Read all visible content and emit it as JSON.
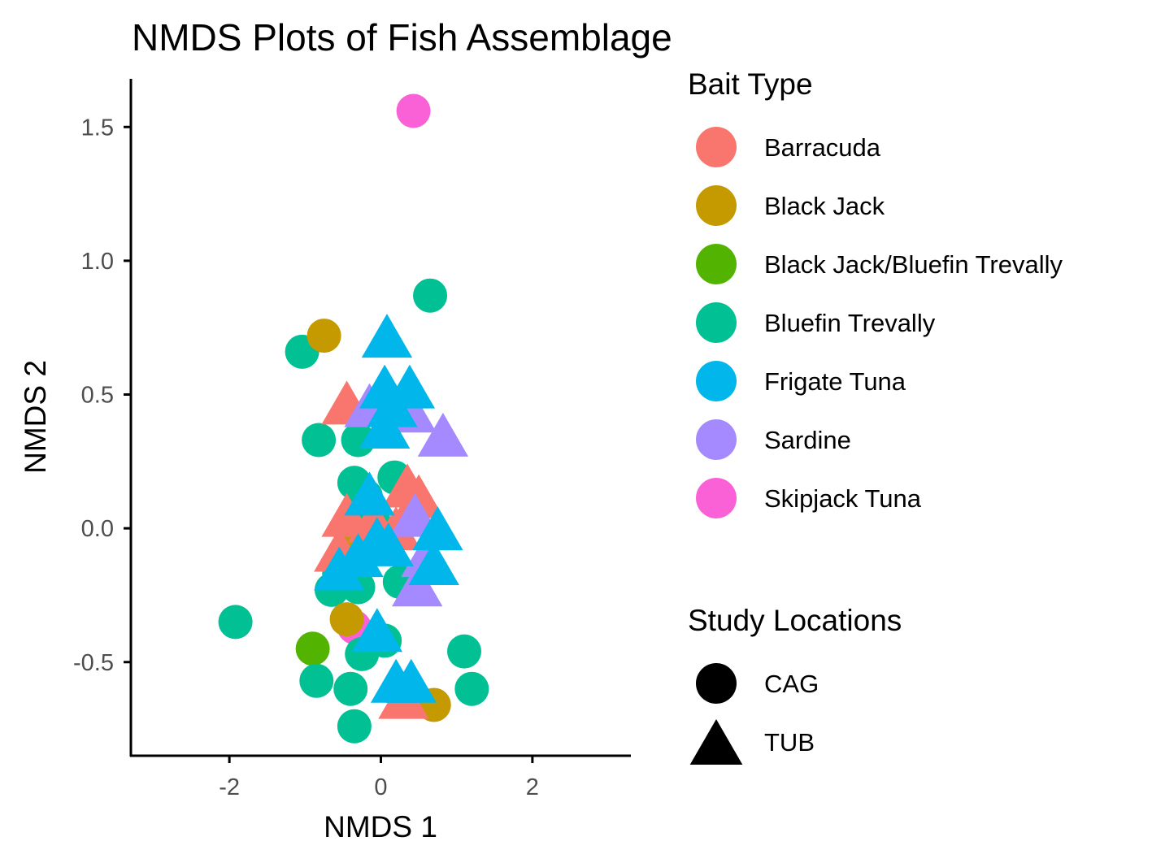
{
  "chart_data": {
    "type": "scatter",
    "title": "NMDS Plots of Fish Assemblage",
    "xlabel": "NMDS 1",
    "ylabel": "NMDS 2",
    "xlim": [
      -3.3,
      3.3
    ],
    "ylim": [
      -0.85,
      1.68
    ],
    "xticks": [
      {
        "value": -2,
        "label": "-2"
      },
      {
        "value": 0,
        "label": "0"
      },
      {
        "value": 2,
        "label": "2"
      }
    ],
    "yticks": [
      {
        "value": -0.5,
        "label": "-0.5"
      },
      {
        "value": 0.0,
        "label": "0.0"
      },
      {
        "value": 0.5,
        "label": "0.5"
      },
      {
        "value": 1.0,
        "label": "1.0"
      },
      {
        "value": 1.5,
        "label": "1.5"
      }
    ],
    "grid": false,
    "legend_placement": "right",
    "color_legend": {
      "title": "Bait Type",
      "items": [
        {
          "label": "Barracuda",
          "color": "#F8766D"
        },
        {
          "label": "Black Jack",
          "color": "#C49A00"
        },
        {
          "label": "Black Jack/Bluefin Trevally",
          "color": "#53B400"
        },
        {
          "label": "Bluefin Trevally",
          "color": "#00C094"
        },
        {
          "label": "Frigate Tuna",
          "color": "#00B6EB"
        },
        {
          "label": "Sardine",
          "color": "#A58AFF"
        },
        {
          "label": "Skipjack Tuna",
          "color": "#FB61D7"
        }
      ]
    },
    "shape_legend": {
      "title": "Study Locations",
      "items": [
        {
          "label": "CAG",
          "shape": "circle"
        },
        {
          "label": "TUB",
          "shape": "triangle"
        }
      ]
    },
    "series": [
      {
        "bait": "Bluefin Trevally",
        "location": "CAG",
        "x": -1.04,
        "y": 0.66
      },
      {
        "bait": "Black Jack",
        "location": "CAG",
        "x": -0.75,
        "y": 0.72
      },
      {
        "bait": "Bluefin Trevally",
        "location": "CAG",
        "x": 0.65,
        "y": 0.87
      },
      {
        "bait": "Skipjack Tuna",
        "location": "CAG",
        "x": 0.43,
        "y": 1.56
      },
      {
        "bait": "Bluefin Trevally",
        "location": "CAG",
        "x": -0.82,
        "y": 0.33
      },
      {
        "bait": "Bluefin Trevally",
        "location": "CAG",
        "x": -0.3,
        "y": 0.33
      },
      {
        "bait": "Bluefin Trevally",
        "location": "CAG",
        "x": -0.35,
        "y": 0.17
      },
      {
        "bait": "Bluefin Trevally",
        "location": "CAG",
        "x": 0.18,
        "y": 0.19
      },
      {
        "bait": "Bluefin Trevally",
        "location": "CAG",
        "x": -0.2,
        "y": 0.12
      },
      {
        "bait": "Bluefin Trevally",
        "location": "CAG",
        "x": -0.1,
        "y": 0.03
      },
      {
        "bait": "Black Jack",
        "location": "CAG",
        "x": -0.3,
        "y": -0.07
      },
      {
        "bait": "Bluefin Trevally",
        "location": "CAG",
        "x": -0.55,
        "y": -0.17
      },
      {
        "bait": "Bluefin Trevally",
        "location": "CAG",
        "x": -0.65,
        "y": -0.23
      },
      {
        "bait": "Bluefin Trevally",
        "location": "CAG",
        "x": -0.3,
        "y": -0.22
      },
      {
        "bait": "Bluefin Trevally",
        "location": "CAG",
        "x": 0.25,
        "y": -0.2
      },
      {
        "bait": "Bluefin Trevally",
        "location": "CAG",
        "x": -1.92,
        "y": -0.35
      },
      {
        "bait": "Skipjack Tuna",
        "location": "CAG",
        "x": -0.35,
        "y": -0.37
      },
      {
        "bait": "Black Jack",
        "location": "CAG",
        "x": -0.45,
        "y": -0.34
      },
      {
        "bait": "Bluefin Trevally",
        "location": "CAG",
        "x": 0.05,
        "y": -0.42
      },
      {
        "bait": "Black Jack/Bluefin Trevally",
        "location": "CAG",
        "x": -0.9,
        "y": -0.45
      },
      {
        "bait": "Bluefin Trevally",
        "location": "CAG",
        "x": -0.25,
        "y": -0.47
      },
      {
        "bait": "Bluefin Trevally",
        "location": "CAG",
        "x": 1.1,
        "y": -0.46
      },
      {
        "bait": "Bluefin Trevally",
        "location": "CAG",
        "x": -0.85,
        "y": -0.57
      },
      {
        "bait": "Bluefin Trevally",
        "location": "CAG",
        "x": -0.4,
        "y": -0.6
      },
      {
        "bait": "Bluefin Trevally",
        "location": "CAG",
        "x": 1.2,
        "y": -0.6
      },
      {
        "bait": "Bluefin Trevally",
        "location": "CAG",
        "x": 0.3,
        "y": -0.62
      },
      {
        "bait": "Black Jack",
        "location": "CAG",
        "x": 0.7,
        "y": -0.66
      },
      {
        "bait": "Bluefin Trevally",
        "location": "CAG",
        "x": -0.35,
        "y": -0.74
      },
      {
        "bait": "Barracuda",
        "location": "TUB",
        "x": -0.45,
        "y": 0.47
      },
      {
        "bait": "Sardine",
        "location": "TUB",
        "x": -0.15,
        "y": 0.46
      },
      {
        "bait": "Sardine",
        "location": "TUB",
        "x": 0.4,
        "y": 0.44
      },
      {
        "bait": "Sardine",
        "location": "TUB",
        "x": 0.82,
        "y": 0.35
      },
      {
        "bait": "Barracuda",
        "location": "TUB",
        "x": 0.35,
        "y": 0.16
      },
      {
        "bait": "Barracuda",
        "location": "TUB",
        "x": 0.5,
        "y": 0.12
      },
      {
        "bait": "Barracuda",
        "location": "TUB",
        "x": -0.45,
        "y": 0.05
      },
      {
        "bait": "Barracuda",
        "location": "TUB",
        "x": -0.1,
        "y": 0.03
      },
      {
        "bait": "Barracuda",
        "location": "TUB",
        "x": 0.2,
        "y": 0.0
      },
      {
        "bait": "Barracuda",
        "location": "TUB",
        "x": -0.55,
        "y": -0.08
      },
      {
        "bait": "Sardine",
        "location": "TUB",
        "x": 0.45,
        "y": 0.05
      },
      {
        "bait": "Sardine",
        "location": "TUB",
        "x": 0.6,
        "y": -0.1
      },
      {
        "bait": "Sardine",
        "location": "TUB",
        "x": 0.48,
        "y": -0.21
      },
      {
        "bait": "Barracuda",
        "location": "TUB",
        "x": 0.3,
        "y": -0.63
      },
      {
        "bait": "Frigate Tuna",
        "location": "TUB",
        "x": 0.08,
        "y": 0.72
      },
      {
        "bait": "Frigate Tuna",
        "location": "TUB",
        "x": 0.05,
        "y": 0.53
      },
      {
        "bait": "Frigate Tuna",
        "location": "TUB",
        "x": 0.38,
        "y": 0.53
      },
      {
        "bait": "Frigate Tuna",
        "location": "TUB",
        "x": 0.15,
        "y": 0.46
      },
      {
        "bait": "Frigate Tuna",
        "location": "TUB",
        "x": 0.05,
        "y": 0.38
      },
      {
        "bait": "Frigate Tuna",
        "location": "TUB",
        "x": -0.15,
        "y": 0.13
      },
      {
        "bait": "Frigate Tuna",
        "location": "TUB",
        "x": 0.75,
        "y": 0.0
      },
      {
        "bait": "Frigate Tuna",
        "location": "TUB",
        "x": -0.05,
        "y": -0.04
      },
      {
        "bait": "Frigate Tuna",
        "location": "TUB",
        "x": 0.1,
        "y": -0.06
      },
      {
        "bait": "Frigate Tuna",
        "location": "TUB",
        "x": -0.3,
        "y": -0.1
      },
      {
        "bait": "Frigate Tuna",
        "location": "TUB",
        "x": -0.55,
        "y": -0.15
      },
      {
        "bait": "Frigate Tuna",
        "location": "TUB",
        "x": 0.7,
        "y": -0.13
      },
      {
        "bait": "Frigate Tuna",
        "location": "TUB",
        "x": -0.05,
        "y": -0.38
      },
      {
        "bait": "Frigate Tuna",
        "location": "TUB",
        "x": 0.2,
        "y": -0.57
      },
      {
        "bait": "Frigate Tuna",
        "location": "TUB",
        "x": 0.4,
        "y": -0.57
      }
    ]
  }
}
